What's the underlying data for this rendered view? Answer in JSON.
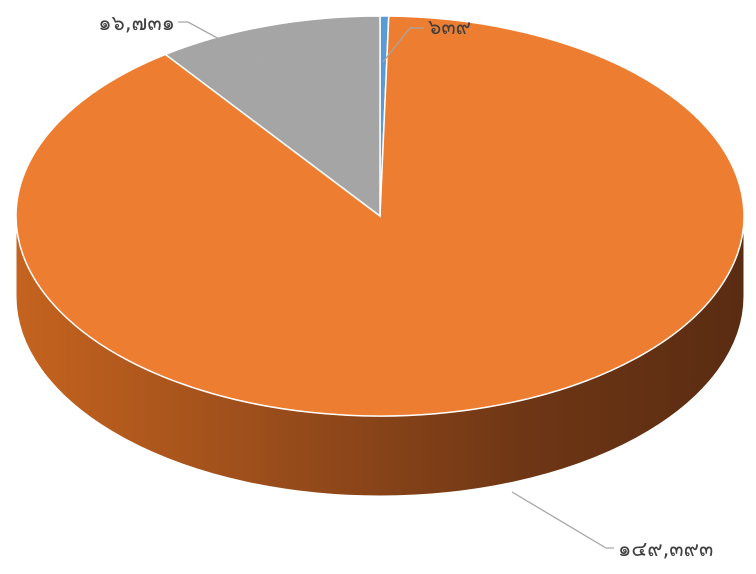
{
  "chart_data": {
    "type": "pie",
    "style": "3d",
    "slices": [
      {
        "label": "๖๓๙",
        "value": 639,
        "color": "#5b9bd5"
      },
      {
        "label": "๑๔๙,๓๙๓",
        "value": 149393,
        "color": "#ed7d31"
      },
      {
        "label": "๑๖,๗๓๑",
        "value": 16731,
        "color": "#a5a5a5"
      }
    ],
    "legend": "none"
  }
}
